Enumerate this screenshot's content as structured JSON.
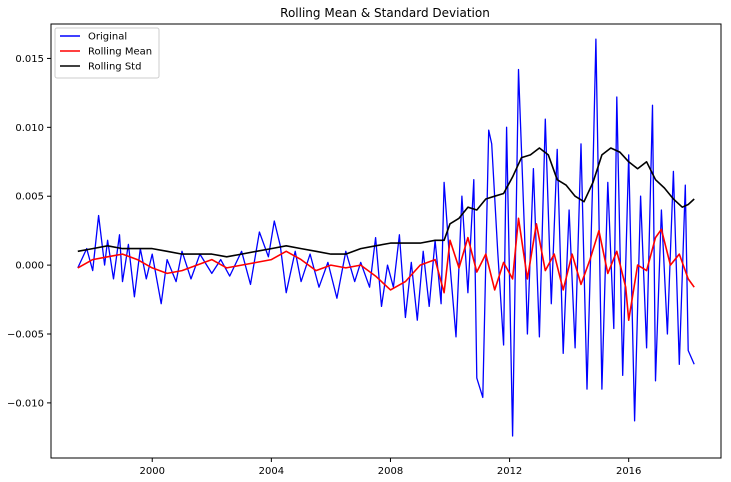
{
  "chart_data": {
    "type": "line",
    "title": "Rolling Mean & Standard Deviation",
    "xlabel": "",
    "ylabel": "",
    "xlim": [
      1996.6,
      2019.1
    ],
    "ylim": [
      -0.014,
      0.0175
    ],
    "x_ticks": [
      2000,
      2004,
      2008,
      2012,
      2016
    ],
    "x_tick_labels": [
      "2000",
      "2004",
      "2008",
      "2012",
      "2016"
    ],
    "y_ticks": [
      -0.01,
      -0.005,
      0.0,
      0.005,
      0.01,
      0.015
    ],
    "y_tick_labels": [
      "−0.010",
      "−0.005",
      "0.000",
      "0.005",
      "0.010",
      "0.015"
    ],
    "grid": false,
    "legend_position": "top-left",
    "series": [
      {
        "name": "Original",
        "color": "#0000ff",
        "x": [
          1997.5,
          1997.8,
          1998.0,
          1998.2,
          1998.4,
          1998.5,
          1998.7,
          1998.9,
          1999.0,
          1999.2,
          1999.4,
          1999.6,
          1999.8,
          2000.0,
          2000.3,
          2000.5,
          2000.8,
          2001.0,
          2001.3,
          2001.6,
          2002.0,
          2002.3,
          2002.6,
          2003.0,
          2003.3,
          2003.6,
          2003.9,
          2004.1,
          2004.3,
          2004.5,
          2004.8,
          2005.0,
          2005.3,
          2005.6,
          2005.9,
          2006.2,
          2006.5,
          2006.8,
          2007.0,
          2007.3,
          2007.5,
          2007.7,
          2007.9,
          2008.1,
          2008.3,
          2008.5,
          2008.7,
          2008.9,
          2009.1,
          2009.3,
          2009.5,
          2009.7,
          2009.8,
          2010.0,
          2010.2,
          2010.4,
          2010.6,
          2010.8,
          2010.9,
          2011.1,
          2011.3,
          2011.4,
          2011.6,
          2011.8,
          2011.9,
          2012.1,
          2012.3,
          2012.5,
          2012.6,
          2012.8,
          2013.0,
          2013.2,
          2013.4,
          2013.6,
          2013.8,
          2014.0,
          2014.2,
          2014.4,
          2014.6,
          2014.8,
          2014.9,
          2015.1,
          2015.3,
          2015.5,
          2015.6,
          2015.8,
          2016.0,
          2016.2,
          2016.4,
          2016.6,
          2016.8,
          2016.9,
          2017.1,
          2017.3,
          2017.5,
          2017.7,
          2017.9,
          2018.0,
          2018.2
        ],
        "values": [
          -0.0002,
          0.0012,
          -0.0004,
          0.0036,
          0.0,
          0.0018,
          -0.001,
          0.0022,
          -0.0012,
          0.0015,
          -0.0023,
          0.0012,
          -0.001,
          0.0008,
          -0.0028,
          0.0004,
          -0.0012,
          0.001,
          -0.001,
          0.0008,
          -0.0006,
          0.0004,
          -0.0008,
          0.001,
          -0.0014,
          0.0024,
          0.0006,
          0.0032,
          0.0014,
          -0.002,
          0.001,
          -0.0012,
          0.0008,
          -0.0016,
          0.0002,
          -0.0024,
          0.001,
          -0.0012,
          0.0002,
          -0.0016,
          0.002,
          -0.003,
          0.0,
          -0.0016,
          0.0022,
          -0.0038,
          0.0002,
          -0.004,
          0.001,
          -0.003,
          0.0018,
          -0.0028,
          0.006,
          0.0,
          -0.0052,
          0.005,
          -0.002,
          0.0062,
          -0.0082,
          -0.0096,
          0.0098,
          0.0088,
          0.001,
          -0.0058,
          0.01,
          -0.0124,
          0.0142,
          0.0024,
          -0.005,
          0.007,
          -0.0052,
          0.0106,
          -0.0028,
          0.0084,
          -0.0064,
          0.004,
          -0.006,
          0.0088,
          -0.009,
          0.007,
          0.0164,
          -0.009,
          0.006,
          -0.0046,
          0.0122,
          -0.008,
          0.008,
          -0.0113,
          0.005,
          -0.006,
          0.0116,
          -0.0084,
          0.004,
          -0.005,
          0.0068,
          -0.0072,
          0.0058,
          -0.0062,
          -0.0072
        ]
      },
      {
        "name": "Rolling Mean",
        "color": "#ff0000",
        "x": [
          1997.5,
          1998.0,
          1998.5,
          1999.0,
          1999.5,
          2000.0,
          2000.5,
          2001.0,
          2001.5,
          2002.0,
          2002.5,
          2003.0,
          2003.5,
          2004.0,
          2004.5,
          2005.0,
          2005.5,
          2006.0,
          2006.5,
          2007.0,
          2007.5,
          2008.0,
          2008.5,
          2009.0,
          2009.5,
          2009.8,
          2010.0,
          2010.3,
          2010.6,
          2010.9,
          2011.2,
          2011.5,
          2011.8,
          2012.1,
          2012.3,
          2012.6,
          2012.9,
          2013.2,
          2013.5,
          2013.8,
          2014.1,
          2014.4,
          2014.7,
          2015.0,
          2015.3,
          2015.6,
          2015.9,
          2016.0,
          2016.3,
          2016.6,
          2016.9,
          2017.1,
          2017.4,
          2017.7,
          2018.0,
          2018.2
        ],
        "values": [
          -0.0002,
          0.0004,
          0.0006,
          0.0008,
          0.0004,
          -0.0002,
          -0.0006,
          -0.0004,
          0.0,
          0.0004,
          -0.0002,
          0.0,
          0.0002,
          0.0004,
          0.001,
          0.0004,
          -0.0004,
          0.0,
          -0.0002,
          0.0,
          -0.0008,
          -0.0018,
          -0.0012,
          0.0,
          0.0004,
          -0.002,
          0.0018,
          -0.0002,
          0.002,
          -0.0005,
          0.0008,
          -0.0018,
          0.0002,
          -0.001,
          0.0034,
          -0.001,
          0.003,
          -0.0004,
          0.0008,
          -0.0018,
          0.0008,
          -0.0014,
          0.0004,
          0.0025,
          -0.0006,
          0.001,
          -0.0016,
          -0.004,
          0.0,
          -0.0004,
          0.002,
          0.0026,
          0.0,
          0.0008,
          -0.001,
          -0.0016
        ]
      },
      {
        "name": "Rolling Std",
        "color": "#000000",
        "x": [
          1997.5,
          1998.0,
          1998.5,
          1999.0,
          1999.5,
          2000.0,
          2000.5,
          2001.0,
          2001.5,
          2002.0,
          2002.5,
          2003.0,
          2003.5,
          2004.0,
          2004.5,
          2005.0,
          2005.5,
          2006.0,
          2006.5,
          2007.0,
          2007.5,
          2008.0,
          2008.5,
          2009.0,
          2009.5,
          2009.8,
          2010.0,
          2010.3,
          2010.6,
          2010.9,
          2011.2,
          2011.5,
          2011.8,
          2012.1,
          2012.4,
          2012.7,
          2013.0,
          2013.3,
          2013.6,
          2013.9,
          2014.2,
          2014.5,
          2014.8,
          2015.1,
          2015.4,
          2015.7,
          2016.0,
          2016.3,
          2016.6,
          2016.9,
          2017.2,
          2017.5,
          2017.8,
          2018.0,
          2018.2
        ],
        "values": [
          0.001,
          0.0012,
          0.0014,
          0.0012,
          0.0012,
          0.0012,
          0.001,
          0.0008,
          0.0008,
          0.0008,
          0.0006,
          0.0008,
          0.001,
          0.0012,
          0.0014,
          0.0012,
          0.001,
          0.0008,
          0.0008,
          0.0012,
          0.0014,
          0.0016,
          0.0016,
          0.0016,
          0.0018,
          0.0018,
          0.003,
          0.0034,
          0.0042,
          0.004,
          0.0048,
          0.005,
          0.0052,
          0.0064,
          0.0078,
          0.008,
          0.0085,
          0.008,
          0.0062,
          0.0058,
          0.005,
          0.0046,
          0.006,
          0.008,
          0.0085,
          0.0082,
          0.0075,
          0.007,
          0.0075,
          0.0062,
          0.0056,
          0.0048,
          0.0042,
          0.0044,
          0.0048
        ]
      }
    ]
  }
}
